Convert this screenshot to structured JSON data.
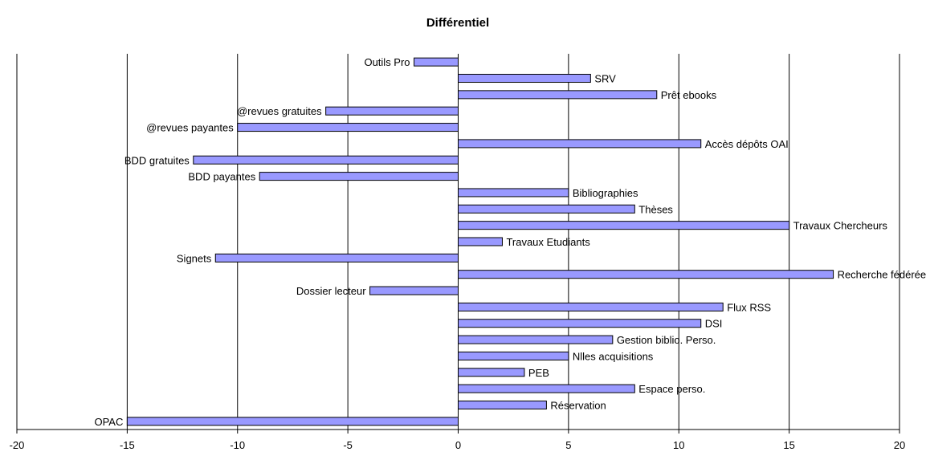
{
  "chart_data": {
    "type": "bar",
    "orientation": "horizontal",
    "title": "Différentiel",
    "xlabel": "",
    "ylabel": "",
    "xlim": [
      -20,
      20
    ],
    "xticks": [
      -20,
      -15,
      -10,
      -5,
      0,
      5,
      10,
      15,
      20
    ],
    "grid": true,
    "legend": "none",
    "bar_color": "#9999ff",
    "bar_edge_color": "#000000",
    "categories": [
      "Outils Pro",
      "SRV",
      "Prêt ebooks",
      "@revues gratuites",
      "@revues payantes",
      "Accès dépôts OAI",
      "BDD gratuites",
      "BDD payantes",
      "Bibliographies",
      "Thèses",
      "Travaux Chercheurs",
      "Travaux Etudiants",
      "Signets",
      "Recherche fédérée",
      "Dossier lecteur",
      "Flux RSS",
      "DSI",
      "Gestion biblio. Perso.",
      "Nlles acquisitions",
      "PEB",
      "Espace perso.",
      "Réservation",
      "OPAC"
    ],
    "values": [
      -2,
      6,
      9,
      -6,
      -10,
      11,
      -12,
      -9,
      5,
      8,
      15,
      2,
      -11,
      17,
      -4,
      12,
      11,
      7,
      5,
      3,
      8,
      4,
      -15
    ]
  }
}
